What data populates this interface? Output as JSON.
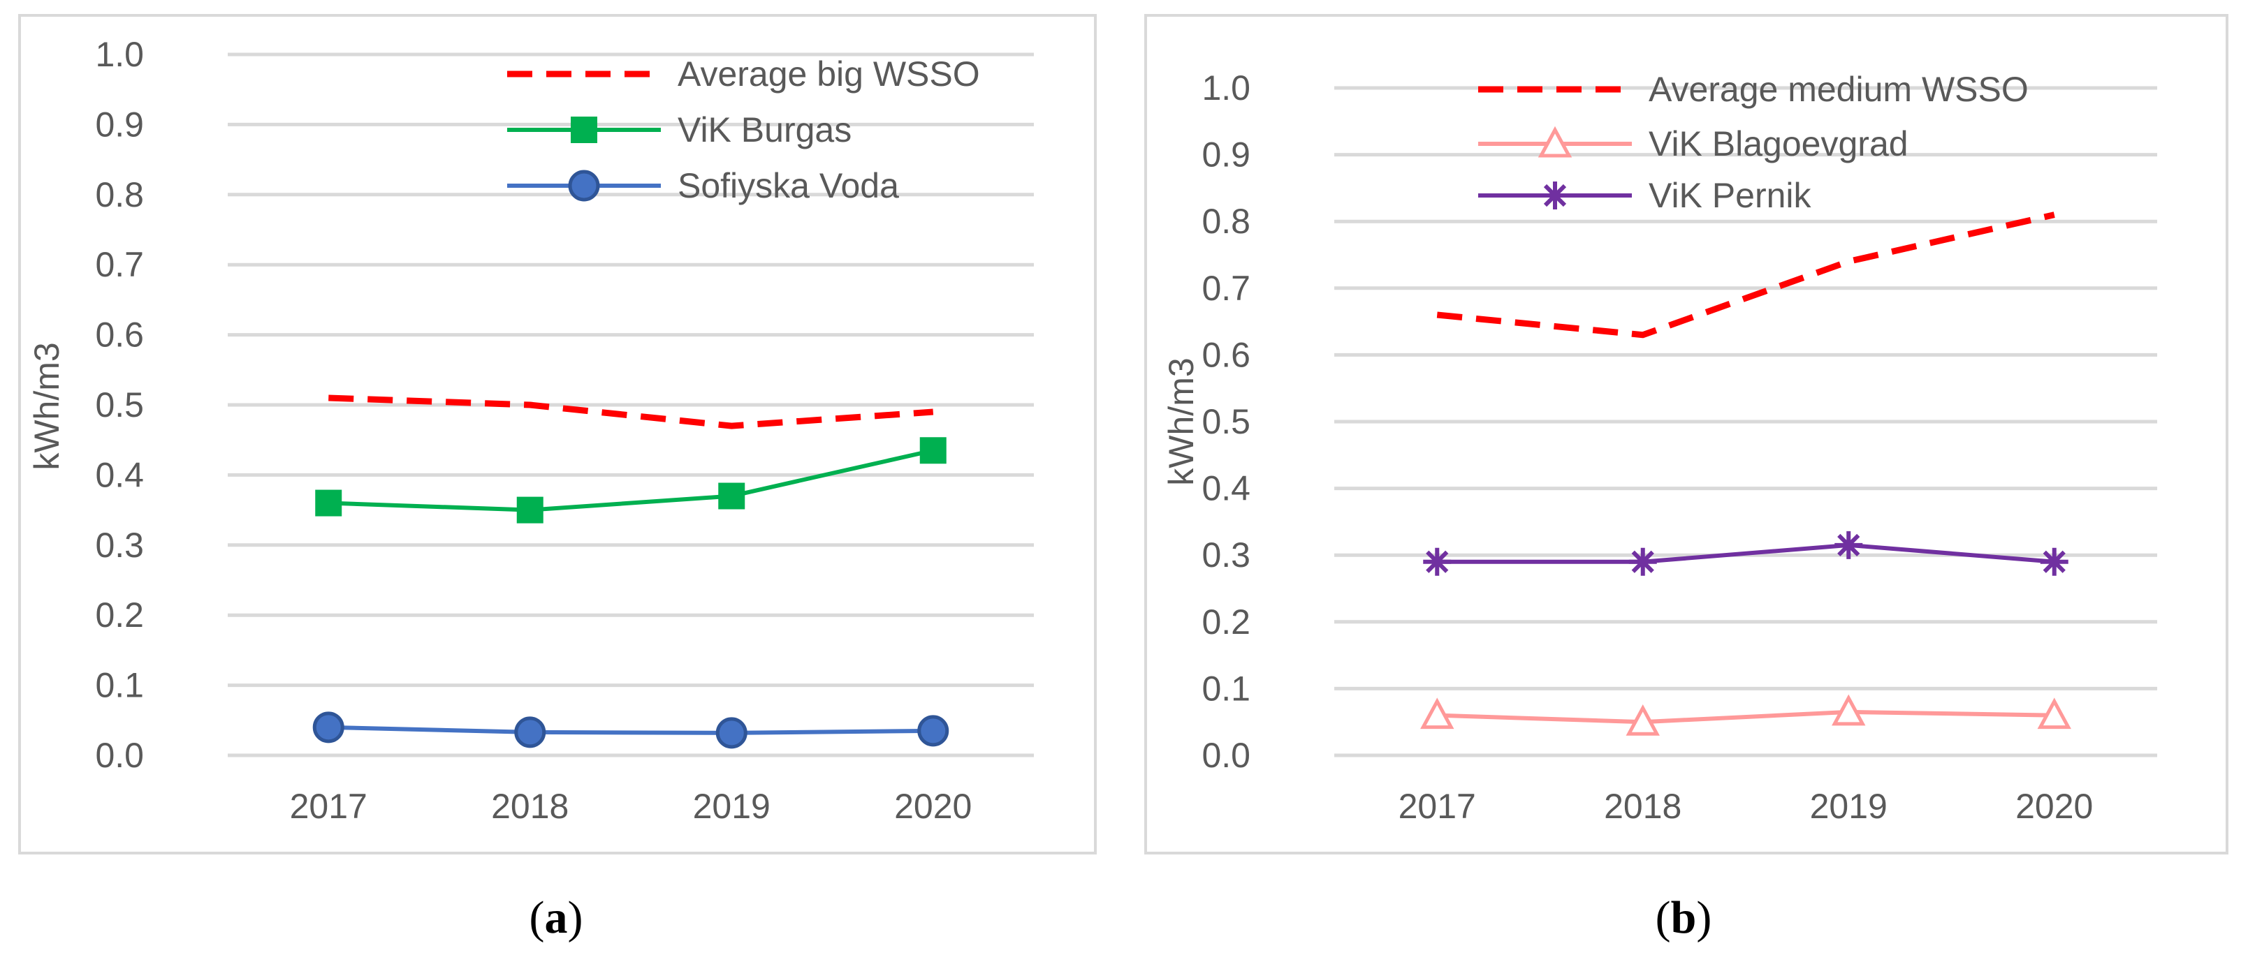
{
  "chart_data": [
    {
      "type": "line",
      "panel_label": {
        "open": "(",
        "letter": "a",
        "close": ")"
      },
      "ylabel": "kWh/m3",
      "categories": [
        "2017",
        "2018",
        "2019",
        "2020"
      ],
      "ylim": [
        0,
        1.0
      ],
      "y_ticks": [
        "0.0",
        "0.1",
        "0.2",
        "0.3",
        "0.4",
        "0.5",
        "0.6",
        "0.7",
        "0.8",
        "0.9",
        "1.0"
      ],
      "grid": true,
      "legend_position": "top-right",
      "series": [
        {
          "name": "Average big WSSO",
          "values": [
            0.51,
            0.5,
            0.47,
            0.49
          ],
          "color": "#ff0000",
          "dash": "dashed",
          "marker": "none"
        },
        {
          "name": "ViK Burgas",
          "values": [
            0.36,
            0.35,
            0.37,
            0.435
          ],
          "color": "#00b050",
          "dash": "solid",
          "marker": "square"
        },
        {
          "name": "Sofiyska Voda",
          "values": [
            0.04,
            0.033,
            0.032,
            0.035
          ],
          "color": "#4472c4",
          "dash": "solid",
          "marker": "circle"
        }
      ]
    },
    {
      "type": "line",
      "panel_label": {
        "open": "(",
        "letter": "b",
        "close": ")"
      },
      "ylabel": "kWh/m3",
      "categories": [
        "2017",
        "2018",
        "2019",
        "2020"
      ],
      "ylim": [
        0,
        1.0
      ],
      "y_ticks": [
        "0.0",
        "0.1",
        "0.2",
        "0.3",
        "0.4",
        "0.5",
        "0.6",
        "0.7",
        "0.8",
        "0.9",
        "1.0"
      ],
      "grid": true,
      "legend_position": "top-right",
      "series": [
        {
          "name": "Average medium WSSO",
          "values": [
            0.66,
            0.63,
            0.74,
            0.81
          ],
          "color": "#ff0000",
          "dash": "dashed",
          "marker": "none"
        },
        {
          "name": "ViK Blagoevgrad",
          "values": [
            0.06,
            0.05,
            0.065,
            0.06
          ],
          "color": "#ff9999",
          "dash": "solid",
          "marker": "triangle"
        },
        {
          "name": "ViK Pernik",
          "values": [
            0.29,
            0.29,
            0.315,
            0.29
          ],
          "color": "#7030a0",
          "dash": "solid",
          "marker": "asterisk"
        }
      ]
    }
  ]
}
